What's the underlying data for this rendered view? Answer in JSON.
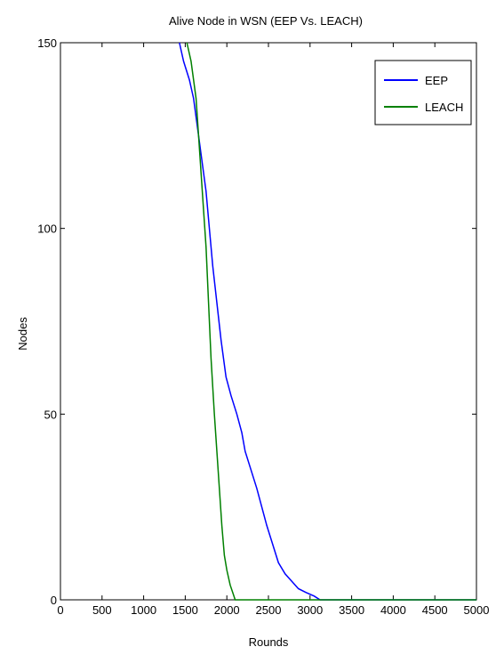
{
  "chart_data": {
    "type": "line",
    "title": "Alive Node in WSN (EEP Vs. LEACH)",
    "xlabel": "Rounds",
    "ylabel": "Nodes",
    "xlim": [
      0,
      5000
    ],
    "ylim": [
      0,
      150
    ],
    "xticks": [
      0,
      500,
      1000,
      1500,
      2000,
      2500,
      3000,
      3500,
      4000,
      4500,
      5000
    ],
    "yticks": [
      0,
      50,
      100,
      150
    ],
    "legend_position": "top-right",
    "grid": false,
    "series": [
      {
        "name": "EEP",
        "color": "#0000ff",
        "points": [
          [
            1430,
            150
          ],
          [
            1480,
            145
          ],
          [
            1550,
            140
          ],
          [
            1600,
            135
          ],
          [
            1630,
            130
          ],
          [
            1660,
            125
          ],
          [
            1690,
            120
          ],
          [
            1720,
            115
          ],
          [
            1750,
            110
          ],
          [
            1790,
            100
          ],
          [
            1830,
            90
          ],
          [
            1880,
            80
          ],
          [
            1930,
            70
          ],
          [
            1990,
            60
          ],
          [
            2050,
            55
          ],
          [
            2120,
            50
          ],
          [
            2180,
            45
          ],
          [
            2220,
            40
          ],
          [
            2290,
            35
          ],
          [
            2360,
            30
          ],
          [
            2420,
            25
          ],
          [
            2480,
            20
          ],
          [
            2550,
            15
          ],
          [
            2620,
            10
          ],
          [
            2700,
            7
          ],
          [
            2780,
            5
          ],
          [
            2860,
            3
          ],
          [
            2950,
            2
          ],
          [
            3050,
            1
          ],
          [
            3120,
            0
          ],
          [
            5000,
            0
          ]
        ]
      },
      {
        "name": "LEACH",
        "color": "#008000",
        "points": [
          [
            1520,
            150
          ],
          [
            1570,
            145
          ],
          [
            1600,
            140
          ],
          [
            1630,
            135
          ],
          [
            1660,
            125
          ],
          [
            1690,
            115
          ],
          [
            1720,
            105
          ],
          [
            1750,
            95
          ],
          [
            1780,
            80
          ],
          [
            1810,
            65
          ],
          [
            1850,
            50
          ],
          [
            1880,
            40
          ],
          [
            1910,
            30
          ],
          [
            1940,
            20
          ],
          [
            1970,
            12
          ],
          [
            2000,
            8
          ],
          [
            2040,
            4
          ],
          [
            2070,
            2
          ],
          [
            2100,
            0
          ],
          [
            5000,
            0
          ]
        ]
      }
    ]
  }
}
